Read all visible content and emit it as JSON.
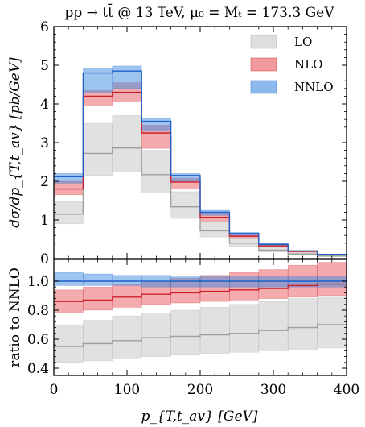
{
  "chart_data": {
    "type": "histogram-bands",
    "title": "pp → tt̄ @ 13 TeV, μ₀ = Mₜ = 173.3 GeV",
    "bin_edges": [
      0,
      40,
      80,
      120,
      160,
      200,
      240,
      280,
      320,
      360,
      400
    ],
    "xlabel": "p_{T,t_av} [GeV]",
    "xlim": [
      0,
      400
    ],
    "xticks": [
      0,
      100,
      200,
      300,
      400
    ],
    "legend_position": "top-right",
    "colors": {
      "LO": "#bdbdbd",
      "NLO": "#e8585e",
      "NNLO": "#3d8be0",
      "LO_line": "#9e9e9e",
      "NLO_line": "#cc1f2a",
      "NNLO_line": "#1f5fc8"
    },
    "main": {
      "ylabel": "dσ/dp_{T,t_av} [pb/GeV]",
      "ylim": [
        0,
        6
      ],
      "yticks": [
        0,
        1,
        2,
        3,
        4,
        5,
        6
      ],
      "series": [
        {
          "name": "LO",
          "central": [
            1.15,
            2.72,
            2.86,
            2.17,
            1.34,
            0.72,
            0.4,
            0.22,
            0.12,
            0.07
          ],
          "low": [
            0.9,
            2.15,
            2.26,
            1.7,
            1.04,
            0.56,
            0.31,
            0.17,
            0.09,
            0.05
          ],
          "high": [
            1.48,
            3.5,
            3.7,
            2.8,
            1.73,
            0.94,
            0.52,
            0.29,
            0.16,
            0.09
          ]
        },
        {
          "name": "NLO",
          "central": [
            1.8,
            4.2,
            4.3,
            3.25,
            1.98,
            1.07,
            0.58,
            0.33,
            0.19,
            0.1
          ],
          "low": [
            1.65,
            3.95,
            4.05,
            2.85,
            1.8,
            0.97,
            0.52,
            0.3,
            0.17,
            0.09
          ],
          "high": [
            2.0,
            4.35,
            4.55,
            3.45,
            2.08,
            1.2,
            0.65,
            0.37,
            0.21,
            0.12
          ]
        },
        {
          "name": "NNLO",
          "central": [
            2.12,
            4.8,
            4.85,
            3.55,
            2.15,
            1.2,
            0.65,
            0.37,
            0.2,
            0.11
          ],
          "low": [
            1.95,
            4.3,
            4.4,
            3.3,
            2.0,
            1.12,
            0.6,
            0.34,
            0.19,
            0.1
          ],
          "high": [
            2.2,
            4.92,
            4.98,
            3.62,
            2.2,
            1.25,
            0.68,
            0.39,
            0.21,
            0.12
          ]
        }
      ]
    },
    "ratio": {
      "ylabel": "ratio to NNLO",
      "ylim": [
        0.35,
        1.15
      ],
      "yticks": [
        0.4,
        0.6,
        0.8,
        1.0
      ],
      "series": [
        {
          "name": "LO",
          "central": [
            0.55,
            0.57,
            0.59,
            0.61,
            0.62,
            0.63,
            0.64,
            0.66,
            0.68,
            0.7
          ],
          "low": [
            0.44,
            0.45,
            0.47,
            0.48,
            0.49,
            0.5,
            0.51,
            0.52,
            0.53,
            0.54
          ],
          "high": [
            0.7,
            0.73,
            0.76,
            0.78,
            0.8,
            0.82,
            0.84,
            0.86,
            0.88,
            0.89
          ]
        },
        {
          "name": "NLO",
          "central": [
            0.86,
            0.87,
            0.89,
            0.91,
            0.92,
            0.93,
            0.94,
            0.95,
            0.97,
            0.98
          ],
          "low": [
            0.78,
            0.8,
            0.82,
            0.84,
            0.85,
            0.86,
            0.87,
            0.88,
            0.89,
            0.9
          ],
          "high": [
            0.94,
            0.96,
            0.98,
            1.0,
            1.02,
            1.04,
            1.06,
            1.08,
            1.11,
            1.13
          ]
        },
        {
          "name": "NNLO",
          "central": [
            1.0,
            1.0,
            1.0,
            1.0,
            1.0,
            1.0,
            1.0,
            1.0,
            1.0,
            1.0
          ],
          "low": [
            0.97,
            0.97,
            0.97,
            0.96,
            0.96,
            0.96,
            0.96,
            0.96,
            0.96,
            0.96
          ],
          "high": [
            1.06,
            1.05,
            1.04,
            1.04,
            1.03,
            1.03,
            1.03,
            1.03,
            1.03,
            1.03
          ]
        }
      ]
    }
  }
}
